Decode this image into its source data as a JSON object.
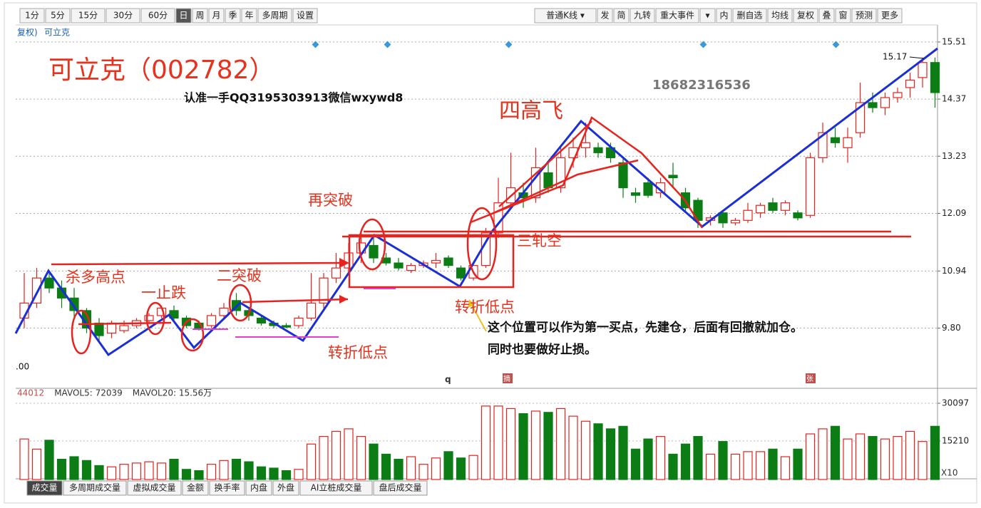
{
  "toolbar": {
    "left": [
      "1分",
      "5分",
      "15分",
      "30分",
      "60分",
      "日",
      "周",
      "月",
      "季",
      "年",
      "多周期",
      "设置"
    ],
    "right": [
      "普通K线 ▾",
      "发",
      "简",
      "九转",
      "重大事件",
      "▾",
      "内",
      "删自选",
      "均线",
      "复权",
      "叠",
      "窗",
      "预测",
      "更多"
    ]
  },
  "stock_tag": [
    "复权)",
    "可立克"
  ],
  "annotations": {
    "title": "可立克（002782）",
    "contact": "认准一手QQ3195303913微信wxywd8",
    "phone": "18682316536",
    "four_high": "四高飞",
    "breakout_again": "再突破",
    "squeeze": "三轧空",
    "kill_high": "杀多高点",
    "stop_fall": "一止跌",
    "second_break": "二突破",
    "turn_low_1": "转折低点",
    "turn_low_2": "转折低点",
    "note_1": "这个位置可以作为第一买点，先建仓，后面有回撤就加仓。",
    "note_2": "同时也要做好止损。",
    "high_label": "15.17",
    "left_label": ".00",
    "marker_q": "q",
    "marker_1": "摘",
    "marker_2": "张"
  },
  "tabs": [
    "成交量",
    "多周期成交量",
    "虚拟成交量",
    "金额",
    "换手率",
    "内盘",
    "外盘",
    "AI立桩成交量",
    "盘后成交量"
  ],
  "chart_data": [
    {
      "type": "candlestick",
      "up_color": "#e8221d",
      "down_color": "#0b7d14",
      "grid": true,
      "ylim": [
        8.67,
        15.85
      ],
      "yticks": [
        15.51,
        14.37,
        13.23,
        12.09,
        10.94,
        {
          "value": 9.8,
          "label": "9.80"
        }
      ],
      "ohlc": [
        [
          10.0,
          10.9,
          9.8,
          10.3
        ],
        [
          10.3,
          11.0,
          10.2,
          10.8
        ],
        [
          10.8,
          10.95,
          10.5,
          10.6
        ],
        [
          10.6,
          10.75,
          10.2,
          10.4
        ],
        [
          10.4,
          10.6,
          10.0,
          10.15
        ],
        [
          10.15,
          10.2,
          9.7,
          9.8
        ],
        [
          9.9,
          10.0,
          9.55,
          9.65
        ],
        [
          9.7,
          9.95,
          9.6,
          9.9
        ],
        [
          9.75,
          9.95,
          9.7,
          9.85
        ],
        [
          9.85,
          10.0,
          9.8,
          9.95
        ],
        [
          9.95,
          10.1,
          9.9,
          10.05
        ],
        [
          10.05,
          10.25,
          10.0,
          10.2
        ],
        [
          10.15,
          10.25,
          9.95,
          10.0
        ],
        [
          10.0,
          10.05,
          9.8,
          9.85
        ],
        [
          9.9,
          9.95,
          9.75,
          9.8
        ],
        [
          9.85,
          10.1,
          9.8,
          10.05
        ],
        [
          10.05,
          10.3,
          10.0,
          10.2
        ],
        [
          10.35,
          10.5,
          10.05,
          10.15
        ],
        [
          10.15,
          10.2,
          9.95,
          10.05
        ],
        [
          10.0,
          10.05,
          9.85,
          9.9
        ],
        [
          9.9,
          9.95,
          9.8,
          9.85
        ],
        [
          9.85,
          9.9,
          9.8,
          9.82
        ],
        [
          9.85,
          10.05,
          9.8,
          10.0
        ],
        [
          10.0,
          10.9,
          9.95,
          10.3
        ],
        [
          10.3,
          10.9,
          10.2,
          10.8
        ],
        [
          10.8,
          11.3,
          10.7,
          11.0
        ],
        [
          11.0,
          11.5,
          10.9,
          11.3
        ],
        [
          11.3,
          11.7,
          11.1,
          11.5
        ],
        [
          11.45,
          11.6,
          11.1,
          11.2
        ],
        [
          11.2,
          11.3,
          11.05,
          11.1
        ],
        [
          11.1,
          11.2,
          10.95,
          11.0
        ],
        [
          10.95,
          11.1,
          10.9,
          11.05
        ],
        [
          11.05,
          11.15,
          11.0,
          11.1
        ],
        [
          11.1,
          11.3,
          11.0,
          11.15
        ],
        [
          11.2,
          11.25,
          11.0,
          11.05
        ],
        [
          11.0,
          11.05,
          10.75,
          10.8
        ],
        [
          10.8,
          11.1,
          10.75,
          11.05
        ],
        [
          11.05,
          11.8,
          11.0,
          11.7
        ],
        [
          11.7,
          12.8,
          11.6,
          12.3
        ],
        [
          12.3,
          13.3,
          12.2,
          12.6
        ],
        [
          12.5,
          12.7,
          12.2,
          12.4
        ],
        [
          12.4,
          13.4,
          12.3,
          13.0
        ],
        [
          12.9,
          13.1,
          12.5,
          12.6
        ],
        [
          12.6,
          13.4,
          12.5,
          13.2
        ],
        [
          13.2,
          13.6,
          13.0,
          13.4
        ],
        [
          13.4,
          13.9,
          13.2,
          13.5
        ],
        [
          13.4,
          13.5,
          13.2,
          13.3
        ],
        [
          13.4,
          13.5,
          13.1,
          13.2
        ],
        [
          13.1,
          13.2,
          12.4,
          12.6
        ],
        [
          12.5,
          12.6,
          12.3,
          12.45
        ],
        [
          12.7,
          12.8,
          12.4,
          12.45
        ],
        [
          12.5,
          12.8,
          12.4,
          12.7
        ],
        [
          12.85,
          13.1,
          12.6,
          12.8
        ],
        [
          12.5,
          12.6,
          12.1,
          12.2
        ],
        [
          12.35,
          12.4,
          11.8,
          11.95
        ],
        [
          11.95,
          12.05,
          11.85,
          12.0
        ],
        [
          12.1,
          12.15,
          11.8,
          11.9
        ],
        [
          11.9,
          12.0,
          11.85,
          11.95
        ],
        [
          11.95,
          12.3,
          11.9,
          12.15
        ],
        [
          12.1,
          12.3,
          12.0,
          12.25
        ],
        [
          12.3,
          12.4,
          12.1,
          12.15
        ],
        [
          12.15,
          12.35,
          12.05,
          12.3
        ],
        [
          12.1,
          12.15,
          11.95,
          12.0
        ],
        [
          12.05,
          13.3,
          12.0,
          13.2
        ],
        [
          13.2,
          13.9,
          13.1,
          13.7
        ],
        [
          13.6,
          13.8,
          13.4,
          13.5
        ],
        [
          13.4,
          13.8,
          13.1,
          13.6
        ],
        [
          13.7,
          14.7,
          13.6,
          14.3
        ],
        [
          14.3,
          14.5,
          14.1,
          14.2
        ],
        [
          14.2,
          14.5,
          14.05,
          14.4
        ],
        [
          14.4,
          14.6,
          14.3,
          14.5
        ],
        [
          14.6,
          14.9,
          14.4,
          14.75
        ],
        [
          14.8,
          15.2,
          14.6,
          15.1
        ],
        [
          15.1,
          15.2,
          14.2,
          14.5
        ]
      ]
    },
    {
      "type": "bar",
      "header": [
        "44012",
        "MAVOL5: 72039",
        "MAVOL20: 15.56万"
      ],
      "unit_label": "X10",
      "ylim": [
        0,
        31782
      ],
      "yticks": [
        30097,
        15210
      ],
      "values": [
        16000,
        12000,
        15500,
        8000,
        9000,
        7500,
        5500,
        5000,
        6000,
        6500,
        7000,
        6500,
        8000,
        4000,
        3500,
        6000,
        7500,
        8000,
        7000,
        5000,
        4500,
        3500,
        4000,
        14000,
        17000,
        19000,
        20000,
        17000,
        14000,
        10000,
        8000,
        9000,
        6000,
        8500,
        11000,
        8500,
        9500,
        29000,
        29000,
        28000,
        26000,
        27000,
        26500,
        28000,
        25000,
        23000,
        22000,
        20000,
        21000,
        12000,
        16000,
        17000,
        10000,
        14000,
        17000,
        10000,
        15000,
        10000,
        11000,
        11000,
        12000,
        9000,
        12000,
        18000,
        20000,
        21000,
        16000,
        18000,
        17000,
        16000,
        17000,
        19000,
        15000,
        21000
      ]
    }
  ]
}
